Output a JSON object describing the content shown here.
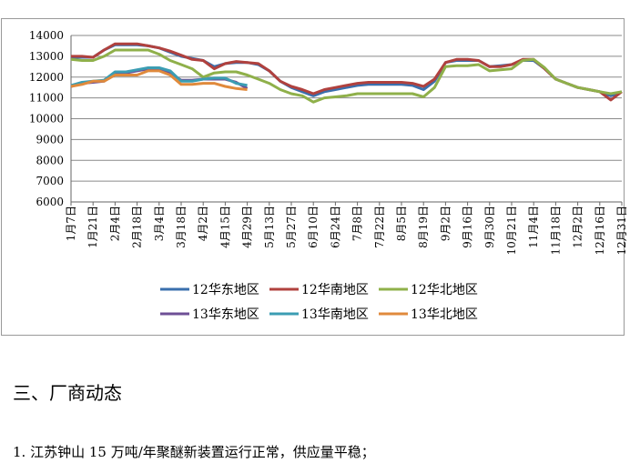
{
  "chart_data": {
    "type": "line",
    "categories": [
      "1月7日",
      null,
      "1月21日",
      null,
      "2月4日",
      null,
      "2月18日",
      null,
      "3月4日",
      null,
      "3月18日",
      null,
      "4月2日",
      null,
      "4月15日",
      null,
      "4月29日",
      null,
      "5月13日",
      null,
      "5月27日",
      null,
      "6月10日",
      null,
      "6月24日",
      null,
      "7月8日",
      null,
      "7月22日",
      null,
      "8月5日",
      null,
      "8月19日",
      null,
      "9月2日",
      null,
      "9月16日",
      null,
      "9月30日",
      null,
      "10月21日",
      null,
      "11月4日",
      null,
      "11月18日",
      null,
      "12月2日",
      null,
      "12月16日",
      null,
      "12月31日"
    ],
    "series": [
      {
        "name": "12华东地区",
        "color": "#3a6fad",
        "values": [
          12950,
          12950,
          12950,
          13300,
          13550,
          13550,
          13550,
          13500,
          13400,
          13200,
          13000,
          12900,
          12800,
          12500,
          12650,
          12700,
          12700,
          12600,
          12300,
          11800,
          11500,
          11300,
          11100,
          11300,
          11400,
          11500,
          11600,
          11650,
          11650,
          11650,
          11650,
          11600,
          11400,
          11800,
          12700,
          12800,
          12800,
          12800,
          12500,
          12550,
          12600,
          12800,
          12800,
          12400,
          11900,
          11700,
          11500,
          11400,
          11300,
          11100,
          11300
        ]
      },
      {
        "name": "12华南地区",
        "color": "#b0413e",
        "values": [
          13000,
          13000,
          12950,
          13300,
          13600,
          13600,
          13600,
          13500,
          13400,
          13250,
          13050,
          12850,
          12800,
          12400,
          12650,
          12750,
          12700,
          12650,
          12300,
          11800,
          11550,
          11400,
          11200,
          11400,
          11500,
          11600,
          11700,
          11750,
          11750,
          11750,
          11750,
          11700,
          11550,
          11900,
          12700,
          12850,
          12850,
          12800,
          12500,
          12500,
          12600,
          12850,
          12850,
          12400,
          11900,
          11700,
          11500,
          11400,
          11300,
          10900,
          11300
        ]
      },
      {
        "name": "12华北地区",
        "color": "#8fb04a",
        "values": [
          12850,
          12800,
          12800,
          13000,
          13300,
          13300,
          13300,
          13300,
          13100,
          12800,
          12600,
          12400,
          12000,
          12200,
          12250,
          12250,
          12100,
          11900,
          11700,
          11400,
          11200,
          11100,
          10800,
          11000,
          11050,
          11100,
          11200,
          11200,
          11200,
          11200,
          11200,
          11200,
          11050,
          11500,
          12500,
          12550,
          12550,
          12600,
          12300,
          12350,
          12400,
          12800,
          12850,
          12450,
          11900,
          11700,
          11500,
          11400,
          11300,
          11200,
          11300
        ]
      },
      {
        "name": "13华东地区",
        "color": "#6e4f96",
        "values": [
          11550,
          11700,
          11750,
          11800,
          12200,
          12200,
          12300,
          12400,
          12400,
          12200,
          11850,
          11850,
          11900,
          11900,
          11900,
          11750,
          11450,
          null,
          null,
          null,
          null,
          null,
          null,
          null,
          null,
          null,
          null,
          null,
          null,
          null,
          null,
          null,
          null,
          null,
          null,
          null,
          null,
          null,
          null,
          null,
          null,
          null,
          null,
          null,
          null,
          null,
          null,
          null,
          null,
          null,
          null
        ]
      },
      {
        "name": "13华南地区",
        "color": "#3b9db3",
        "values": [
          11600,
          11750,
          11800,
          11850,
          12250,
          12250,
          12350,
          12450,
          12450,
          12300,
          11800,
          11800,
          11900,
          11950,
          11950,
          11700,
          11600,
          null,
          null,
          null,
          null,
          null,
          null,
          null,
          null,
          null,
          null,
          null,
          null,
          null,
          null,
          null,
          null,
          null,
          null,
          null,
          null,
          null,
          null,
          null,
          null,
          null,
          null,
          null,
          null,
          null,
          null,
          null,
          null,
          null,
          null
        ]
      },
      {
        "name": "13华北地区",
        "color": "#e08a3c",
        "values": [
          11550,
          11650,
          11800,
          11800,
          12100,
          12100,
          12100,
          12300,
          12300,
          12100,
          11650,
          11650,
          11700,
          11700,
          11550,
          11450,
          11400,
          null,
          null,
          null,
          null,
          null,
          null,
          null,
          null,
          null,
          null,
          null,
          null,
          null,
          null,
          null,
          null,
          null,
          null,
          null,
          null,
          null,
          null,
          null,
          null,
          null,
          null,
          null,
          null,
          null,
          null,
          null,
          null,
          null,
          null
        ]
      }
    ],
    "ylim": [
      6000,
      14000
    ],
    "yticks": [
      6000,
      7000,
      8000,
      9000,
      10000,
      11000,
      12000,
      13000,
      14000
    ],
    "grid": true,
    "legend": "bottom"
  },
  "document": {
    "heading": "三、厂商动态",
    "items": [
      "1. 江苏钟山 15 万吨/年聚醚新装置运行正常，供应量平稳；"
    ]
  }
}
